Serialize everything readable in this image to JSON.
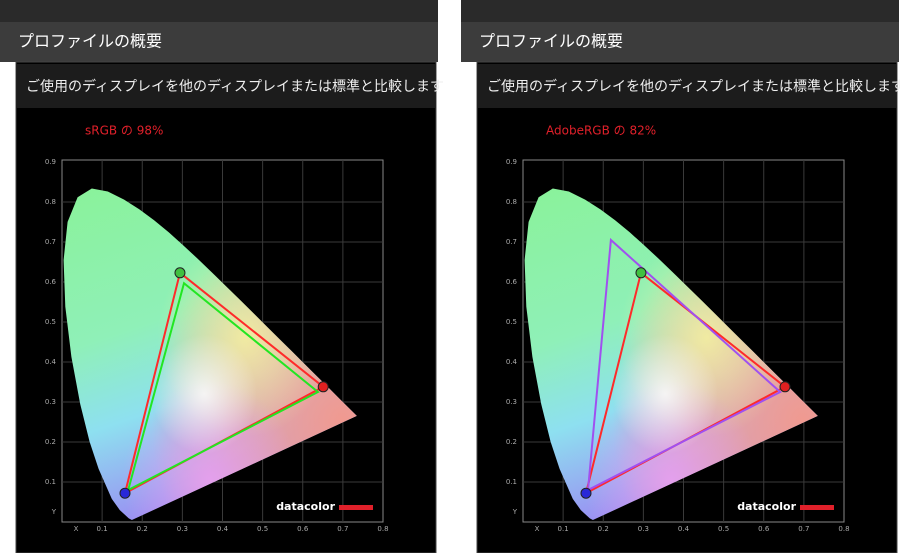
{
  "panels": [
    {
      "header": "プロファイルの概要",
      "subtitle": "ご使用のディスプレイを他のディスプレイまたは標準と比較します",
      "coverage": "sRGB の 98%",
      "chart": {
        "xlim": [
          0,
          0.8
        ],
        "ylim": [
          0,
          0.9
        ],
        "xticks": [
          {
            "value": 0,
            "label": "X"
          },
          0.1,
          0.2,
          0.3,
          0.4,
          0.5,
          0.6,
          0.7,
          0.8
        ],
        "yticks": [
          {
            "value": 0,
            "label": "Y"
          },
          0.1,
          0.2,
          0.3,
          0.4,
          0.5,
          0.6,
          0.7,
          0.8,
          0.9
        ],
        "logo": "datacolor",
        "gamuts": [
          {
            "color": "#ff2a2a",
            "x": [
              0.651,
              0.294,
              0.157
            ],
            "y": [
              0.338,
              0.623,
              0.072
            ],
            "vertex_colors": [
              "#e02020",
              "#40c040",
              "#2828d8"
            ]
          },
          {
            "color": "#22e622",
            "x": [
              0.638,
              0.304,
              0.165
            ],
            "y": [
              0.325,
              0.597,
              0.08
            ]
          }
        ]
      }
    },
    {
      "header": "プロファイルの概要",
      "subtitle": "ご使用のディスプレイを他のディスプレイまたは標準と比較します",
      "coverage": "AdobeRGB の 82%",
      "chart": {
        "xlim": [
          0,
          0.8
        ],
        "ylim": [
          0,
          0.9
        ],
        "xticks": [
          {
            "value": 0,
            "label": "X"
          },
          0.1,
          0.2,
          0.3,
          0.4,
          0.5,
          0.6,
          0.7,
          0.8
        ],
        "yticks": [
          {
            "value": 0,
            "label": "Y"
          },
          0.1,
          0.2,
          0.3,
          0.4,
          0.5,
          0.6,
          0.7,
          0.8,
          0.9
        ],
        "logo": "datacolor",
        "gamuts": [
          {
            "color": "#ff2a2a",
            "x": [
              0.653,
              0.294,
              0.157
            ],
            "y": [
              0.338,
              0.623,
              0.072
            ],
            "vertex_colors": [
              "#e02020",
              "#40c040",
              "#2828d8"
            ]
          },
          {
            "color": "#a050f0",
            "x": [
              0.641,
              0.219,
              0.162
            ],
            "y": [
              0.325,
              0.705,
              0.08
            ]
          }
        ]
      }
    }
  ]
}
